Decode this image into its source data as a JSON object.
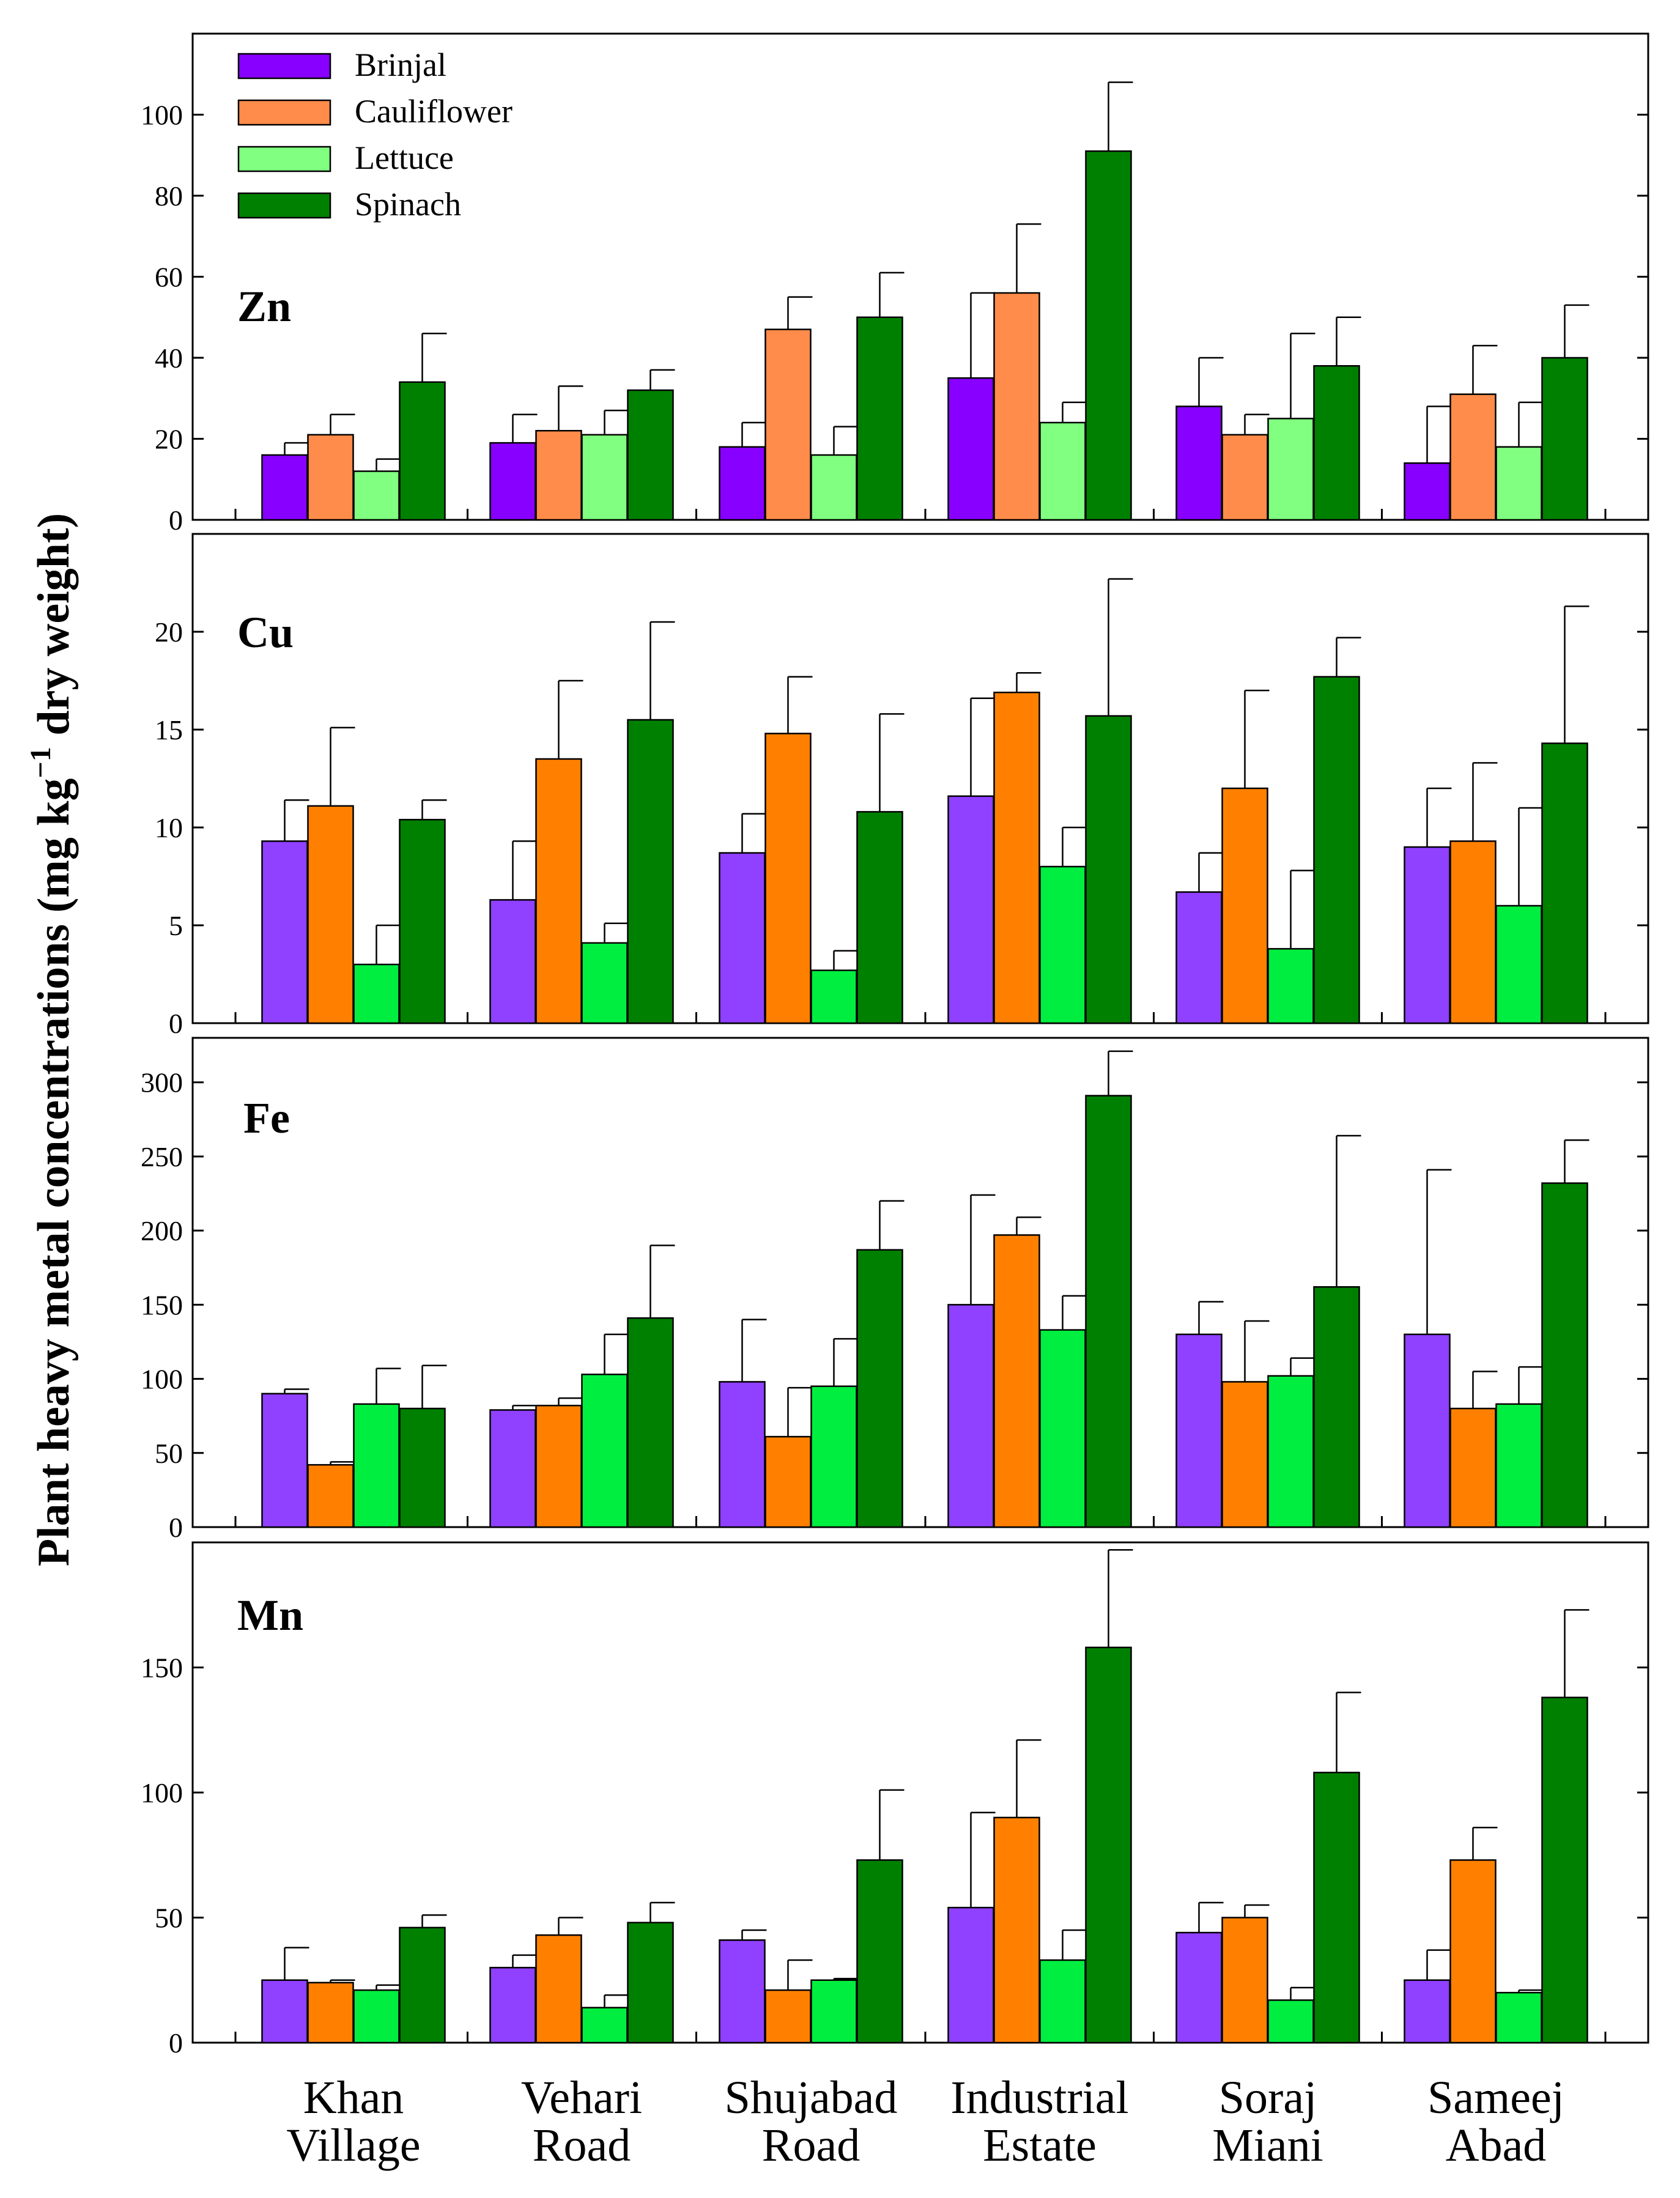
{
  "chart_data": {
    "type": "bar",
    "ylabel": {
      "main": "Plant heavy metal concentrations (mg kg",
      "sup": "−1",
      "tail": " dry weight)"
    },
    "categories": [
      [
        "Khan",
        "Village"
      ],
      [
        "Vehari",
        "Road"
      ],
      [
        "Shujabad",
        "Road"
      ],
      [
        "Industrial",
        "Estate"
      ],
      [
        "Soraj",
        "Miani"
      ],
      [
        "Sameej",
        "Abad"
      ]
    ],
    "series_names": [
      "Brinjal",
      "Cauliflower",
      "Lettuce",
      "Spinach"
    ],
    "legend": {
      "entries": [
        "Brinjal",
        "Cauliflower",
        "Lettuce",
        "Spinach"
      ],
      "colors": [
        "#8800ff",
        "#ff8c4a",
        "#80ff80",
        "#008000"
      ],
      "placement": "top-left"
    },
    "panels": [
      {
        "label": "Zn",
        "ylim": [
          0,
          120
        ],
        "yticks": [
          0,
          20,
          40,
          60,
          80,
          100
        ],
        "colors": [
          "#8800ff",
          "#ff8c4a",
          "#80ff80",
          "#008000"
        ],
        "series": [
          {
            "name": "Brinjal",
            "values": [
              16,
              19,
              18,
              35,
              28,
              14
            ],
            "errors": [
              3,
              7,
              6,
              21,
              12,
              14
            ]
          },
          {
            "name": "Cauliflower",
            "values": [
              21,
              22,
              47,
              56,
              21,
              31
            ],
            "errors": [
              5,
              11,
              8,
              17,
              5,
              12
            ]
          },
          {
            "name": "Lettuce",
            "values": [
              12,
              21,
              16,
              24,
              25,
              18
            ],
            "errors": [
              3,
              6,
              7,
              5,
              21,
              11
            ]
          },
          {
            "name": "Spinach",
            "values": [
              34,
              32,
              50,
              91,
              38,
              40
            ],
            "errors": [
              12,
              5,
              11,
              17,
              12,
              13
            ]
          }
        ]
      },
      {
        "label": "Cu",
        "ylim": [
          0,
          25
        ],
        "yticks": [
          0,
          5,
          10,
          15,
          20
        ],
        "colors": [
          "#9040ff",
          "#ff8000",
          "#00ee40",
          "#008000"
        ],
        "series": [
          {
            "name": "Brinjal",
            "values": [
              9.3,
              6.3,
              8.7,
              11.6,
              6.7,
              9.0
            ],
            "errors": [
              2.1,
              3.0,
              2.0,
              5.0,
              2.0,
              3.0
            ]
          },
          {
            "name": "Cauliflower",
            "values": [
              11.1,
              13.5,
              14.8,
              16.9,
              12.0,
              9.3
            ],
            "errors": [
              4.0,
              4.0,
              2.9,
              1.0,
              5.0,
              4.0
            ]
          },
          {
            "name": "Lettuce",
            "values": [
              3.0,
              4.1,
              2.7,
              8.0,
              3.8,
              6.0
            ],
            "errors": [
              2.0,
              1.0,
              1.0,
              2.0,
              4.0,
              5.0
            ]
          },
          {
            "name": "Spinach",
            "values": [
              10.4,
              15.5,
              10.8,
              15.7,
              17.7,
              14.3
            ],
            "errors": [
              1.0,
              5.0,
              5.0,
              7.0,
              2.0,
              7.0
            ]
          }
        ]
      },
      {
        "label": "Fe",
        "ylim": [
          0,
          330
        ],
        "yticks": [
          0,
          50,
          100,
          150,
          200,
          250,
          300
        ],
        "colors": [
          "#9040ff",
          "#ff8000",
          "#00ee40",
          "#008000"
        ],
        "series": [
          {
            "name": "Brinjal",
            "values": [
              90,
              79,
              98,
              150,
              130,
              130
            ],
            "errors": [
              3,
              3,
              42,
              74,
              22,
              111
            ]
          },
          {
            "name": "Cauliflower",
            "values": [
              42,
              82,
              61,
              197,
              98,
              80
            ],
            "errors": [
              2,
              5,
              33,
              12,
              41,
              25
            ]
          },
          {
            "name": "Lettuce",
            "values": [
              83,
              103,
              95,
              133,
              102,
              83
            ],
            "errors": [
              24,
              27,
              32,
              23,
              12,
              25
            ]
          },
          {
            "name": "Spinach",
            "values": [
              80,
              141,
              187,
              291,
              162,
              232
            ],
            "errors": [
              29,
              49,
              33,
              30,
              102,
              29
            ]
          }
        ]
      },
      {
        "label": "Mn",
        "ylim": [
          0,
          200
        ],
        "yticks": [
          0,
          50,
          100,
          150
        ],
        "colors": [
          "#9040ff",
          "#ff8000",
          "#00ee40",
          "#008000"
        ],
        "series": [
          {
            "name": "Brinjal",
            "values": [
              25,
              30,
              41,
              54,
              44,
              25
            ],
            "errors": [
              13,
              5,
              4,
              38,
              12,
              12
            ]
          },
          {
            "name": "Cauliflower",
            "values": [
              24,
              43,
              21,
              90,
              50,
              73
            ],
            "errors": [
              1,
              7,
              12,
              31,
              5,
              13
            ]
          },
          {
            "name": "Lettuce",
            "values": [
              21,
              14,
              25,
              33,
              17,
              20
            ],
            "errors": [
              2,
              5,
              0.6,
              12,
              5,
              1
            ]
          },
          {
            "name": "Spinach",
            "values": [
              46,
              48,
              73,
              158,
              108,
              138
            ],
            "errors": [
              5,
              8,
              28,
              39,
              32,
              35
            ]
          }
        ]
      }
    ]
  }
}
